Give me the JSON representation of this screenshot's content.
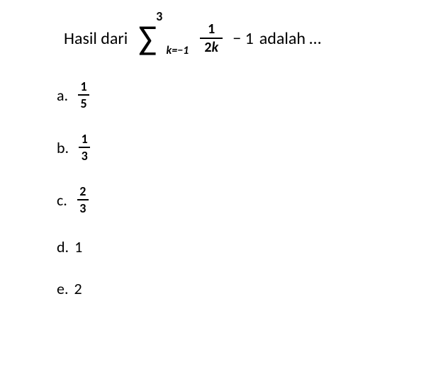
{
  "question": {
    "prefix": "Hasil dari",
    "sigma": {
      "upper": "3",
      "symbol": "∑",
      "lower_var": "k",
      "lower_eq": "=−1"
    },
    "term_fraction": {
      "num": "1",
      "den_coeff": "2",
      "den_var": "k"
    },
    "minus": "− 1",
    "suffix": "adalah …"
  },
  "options": [
    {
      "label": "a.",
      "type": "fraction",
      "num": "1",
      "den": "5"
    },
    {
      "label": "b.",
      "type": "fraction",
      "num": "1",
      "den": "3"
    },
    {
      "label": "c.",
      "type": "fraction",
      "num": "2",
      "den": "3"
    },
    {
      "label": "d.",
      "type": "plain",
      "value": "1"
    },
    {
      "label": "e.",
      "type": "plain",
      "value": "2"
    }
  ]
}
